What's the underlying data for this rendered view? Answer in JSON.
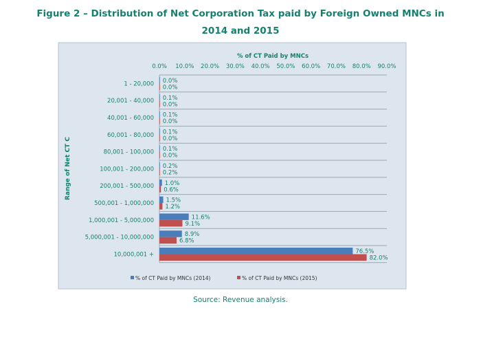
{
  "title_line1": "Figure 2 – Distribution of Net Corporation Tax paid by Foreign Owned MNCs in",
  "title_line2": "2014 and 2015",
  "source": "Source: Revenue analysis.",
  "chart_data": {
    "type": "bar",
    "orientation": "horizontal",
    "title": "% of CT Paid by MNCs",
    "xlabel": "% of CT Paid by MNCs",
    "ylabel": "Range of Net CT C",
    "xlim": [
      0,
      90
    ],
    "xticks": [
      "0.0%",
      "10.0%",
      "20.0%",
      "30.0%",
      "40.0%",
      "50.0%",
      "60.0%",
      "70.0%",
      "80.0%",
      "90.0%"
    ],
    "categories": [
      "1 - 20,000",
      "20,001 - 40,000",
      "40,001 - 60,000",
      "60,001 - 80,000",
      "80,001 - 100,000",
      "100,001 - 200,000",
      "200,001 - 500,000",
      "500,001 - 1,000,000",
      "1,000,001 - 5,000,000",
      "5,000,001 - 10,000,000",
      "10,000,001 +"
    ],
    "series": [
      {
        "name": "% of CT Paid by MNCs (2014)",
        "color": "#4a7ebb",
        "values": [
          0.0,
          0.1,
          0.1,
          0.1,
          0.1,
          0.2,
          1.0,
          1.5,
          11.6,
          8.9,
          76.5
        ],
        "labels": [
          "0.0%",
          "0.1%",
          "0.1%",
          "0.1%",
          "0.1%",
          "0.2%",
          "1.0%",
          "1.5%",
          "11.6%",
          "8.9%",
          "76.5%"
        ]
      },
      {
        "name": "% of CT Paid by MNCs (2015)",
        "color": "#c0504d",
        "values": [
          0.0,
          0.0,
          0.0,
          0.0,
          0.0,
          0.2,
          0.6,
          1.2,
          9.1,
          6.8,
          82.0
        ],
        "labels": [
          "0.0%",
          "0.0%",
          "0.0%",
          "0.0%",
          "0.0%",
          "0.2%",
          "0.6%",
          "1.2%",
          "9.1%",
          "6.8%",
          "82.0%"
        ]
      }
    ],
    "legend": "bottom",
    "grid": true
  }
}
